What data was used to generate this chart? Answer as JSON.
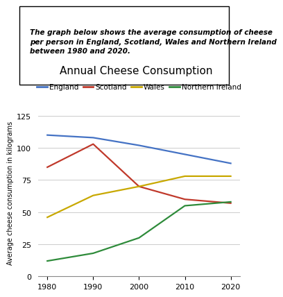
{
  "title": "Annual Cheese Consumption",
  "ylabel": "Average cheese consumption in kilograms",
  "years": [
    1980,
    1990,
    2000,
    2010,
    2020
  ],
  "series": {
    "England": [
      110,
      108,
      102,
      95,
      88
    ],
    "Scotland": [
      85,
      103,
      70,
      60,
      57
    ],
    "Wales": [
      46,
      63,
      70,
      78,
      78
    ],
    "Northern Ireland": [
      12,
      18,
      30,
      55,
      58
    ]
  },
  "colors": {
    "England": "#4472C4",
    "Scotland": "#C0392B",
    "Wales": "#C8A800",
    "Northern Ireland": "#2E8B3A"
  },
  "ylim": [
    0,
    130
  ],
  "yticks": [
    0,
    25,
    50,
    75,
    100,
    125
  ],
  "xticks": [
    1980,
    1990,
    2000,
    2010,
    2020
  ],
  "description_text": "The graph below shows the average consumption of cheese\nper person in England, Scotland, Wales and Northern Ireland\nbetween 1980 and 2020.",
  "title_fontsize": 11,
  "legend_fontsize": 7.5,
  "ylabel_fontsize": 7,
  "tick_fontsize": 8
}
